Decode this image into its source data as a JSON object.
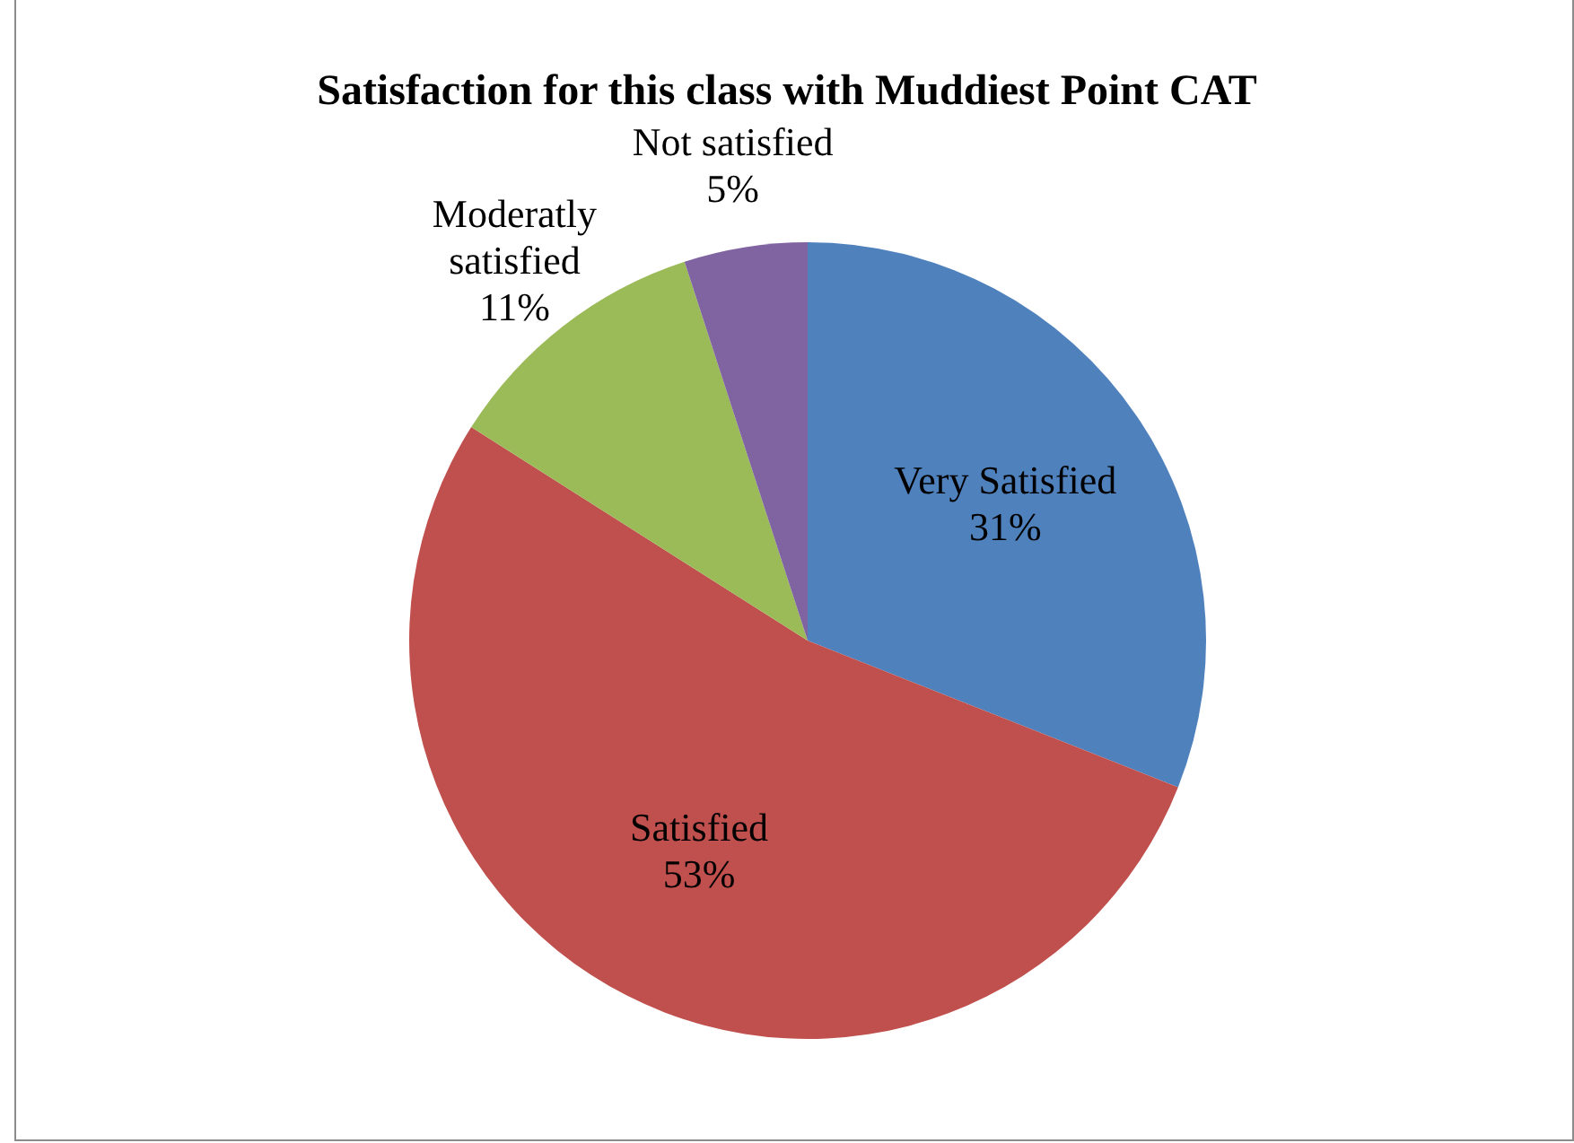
{
  "chart_data": {
    "type": "pie",
    "title": "Satisfaction for this class with Muddiest Point CAT",
    "categories": [
      "Very Satisfied",
      "Satisfied",
      "Moderatly satisfied",
      "Not satisfied"
    ],
    "values": [
      31,
      53,
      11,
      5
    ],
    "colors": [
      "#4f81bd",
      "#c0504d",
      "#9bbb59",
      "#8064a2"
    ],
    "value_labels": [
      "31%",
      "53%",
      "11%",
      "5%"
    ],
    "legend": false
  }
}
